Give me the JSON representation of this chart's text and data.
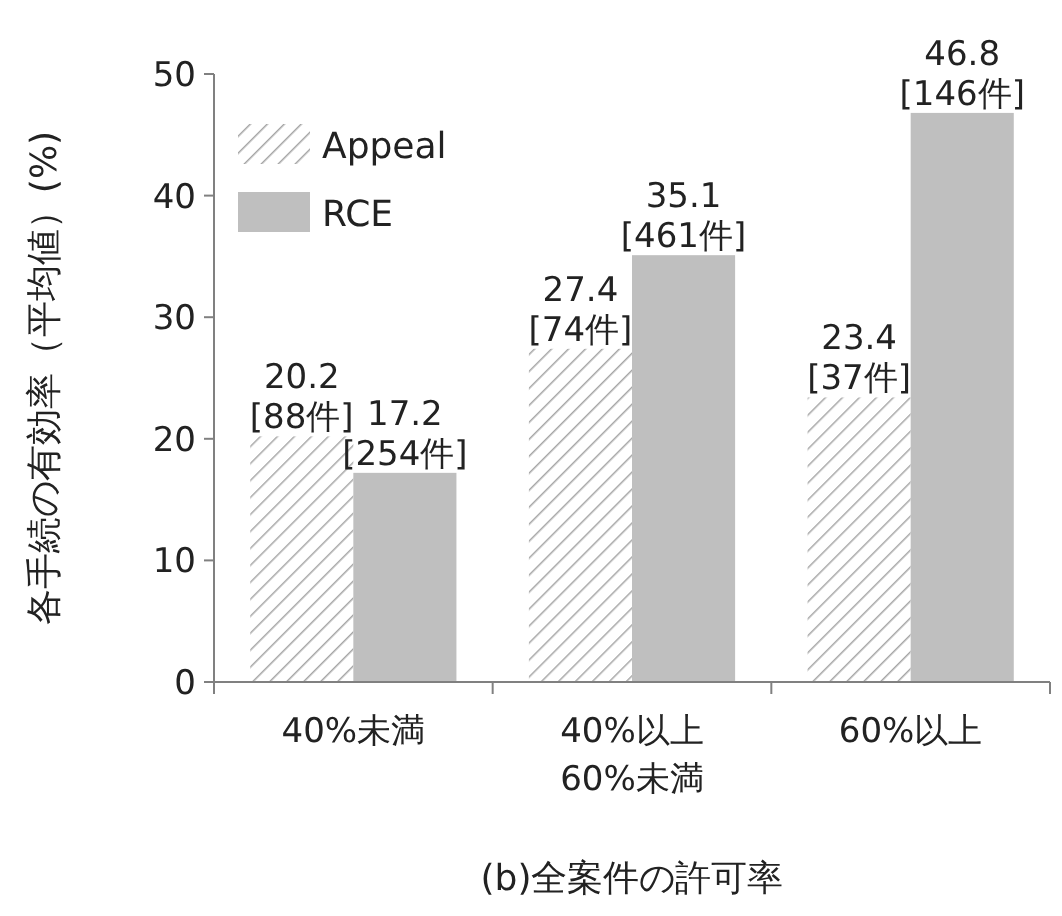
{
  "chart_data": {
    "type": "bar",
    "xlabel": "(b)全案件の許可率",
    "ylabel": "各手続の有効率（平均値）(%)",
    "categories": [
      "40%未満",
      "40%以上\n60%未満",
      "60%以上"
    ],
    "series": [
      {
        "name": "Appeal",
        "color": "#a6a6a6",
        "values": [
          20.2,
          27.4,
          23.4
        ],
        "value_labels": [
          "20.2\n[88件]",
          "27.4\n[74件]",
          "23.4\n[37件]"
        ]
      },
      {
        "name": "RCE",
        "color": "#bfbfbf",
        "values": [
          17.2,
          35.1,
          46.8
        ],
        "value_labels": [
          "17.2\n[254件]",
          "35.1\n[461件]",
          "46.8\n[146件]"
        ]
      }
    ],
    "ylim": [
      0,
      50
    ],
    "yticks": [
      0,
      10,
      20,
      30,
      40,
      50
    ],
    "legend": "top left"
  }
}
